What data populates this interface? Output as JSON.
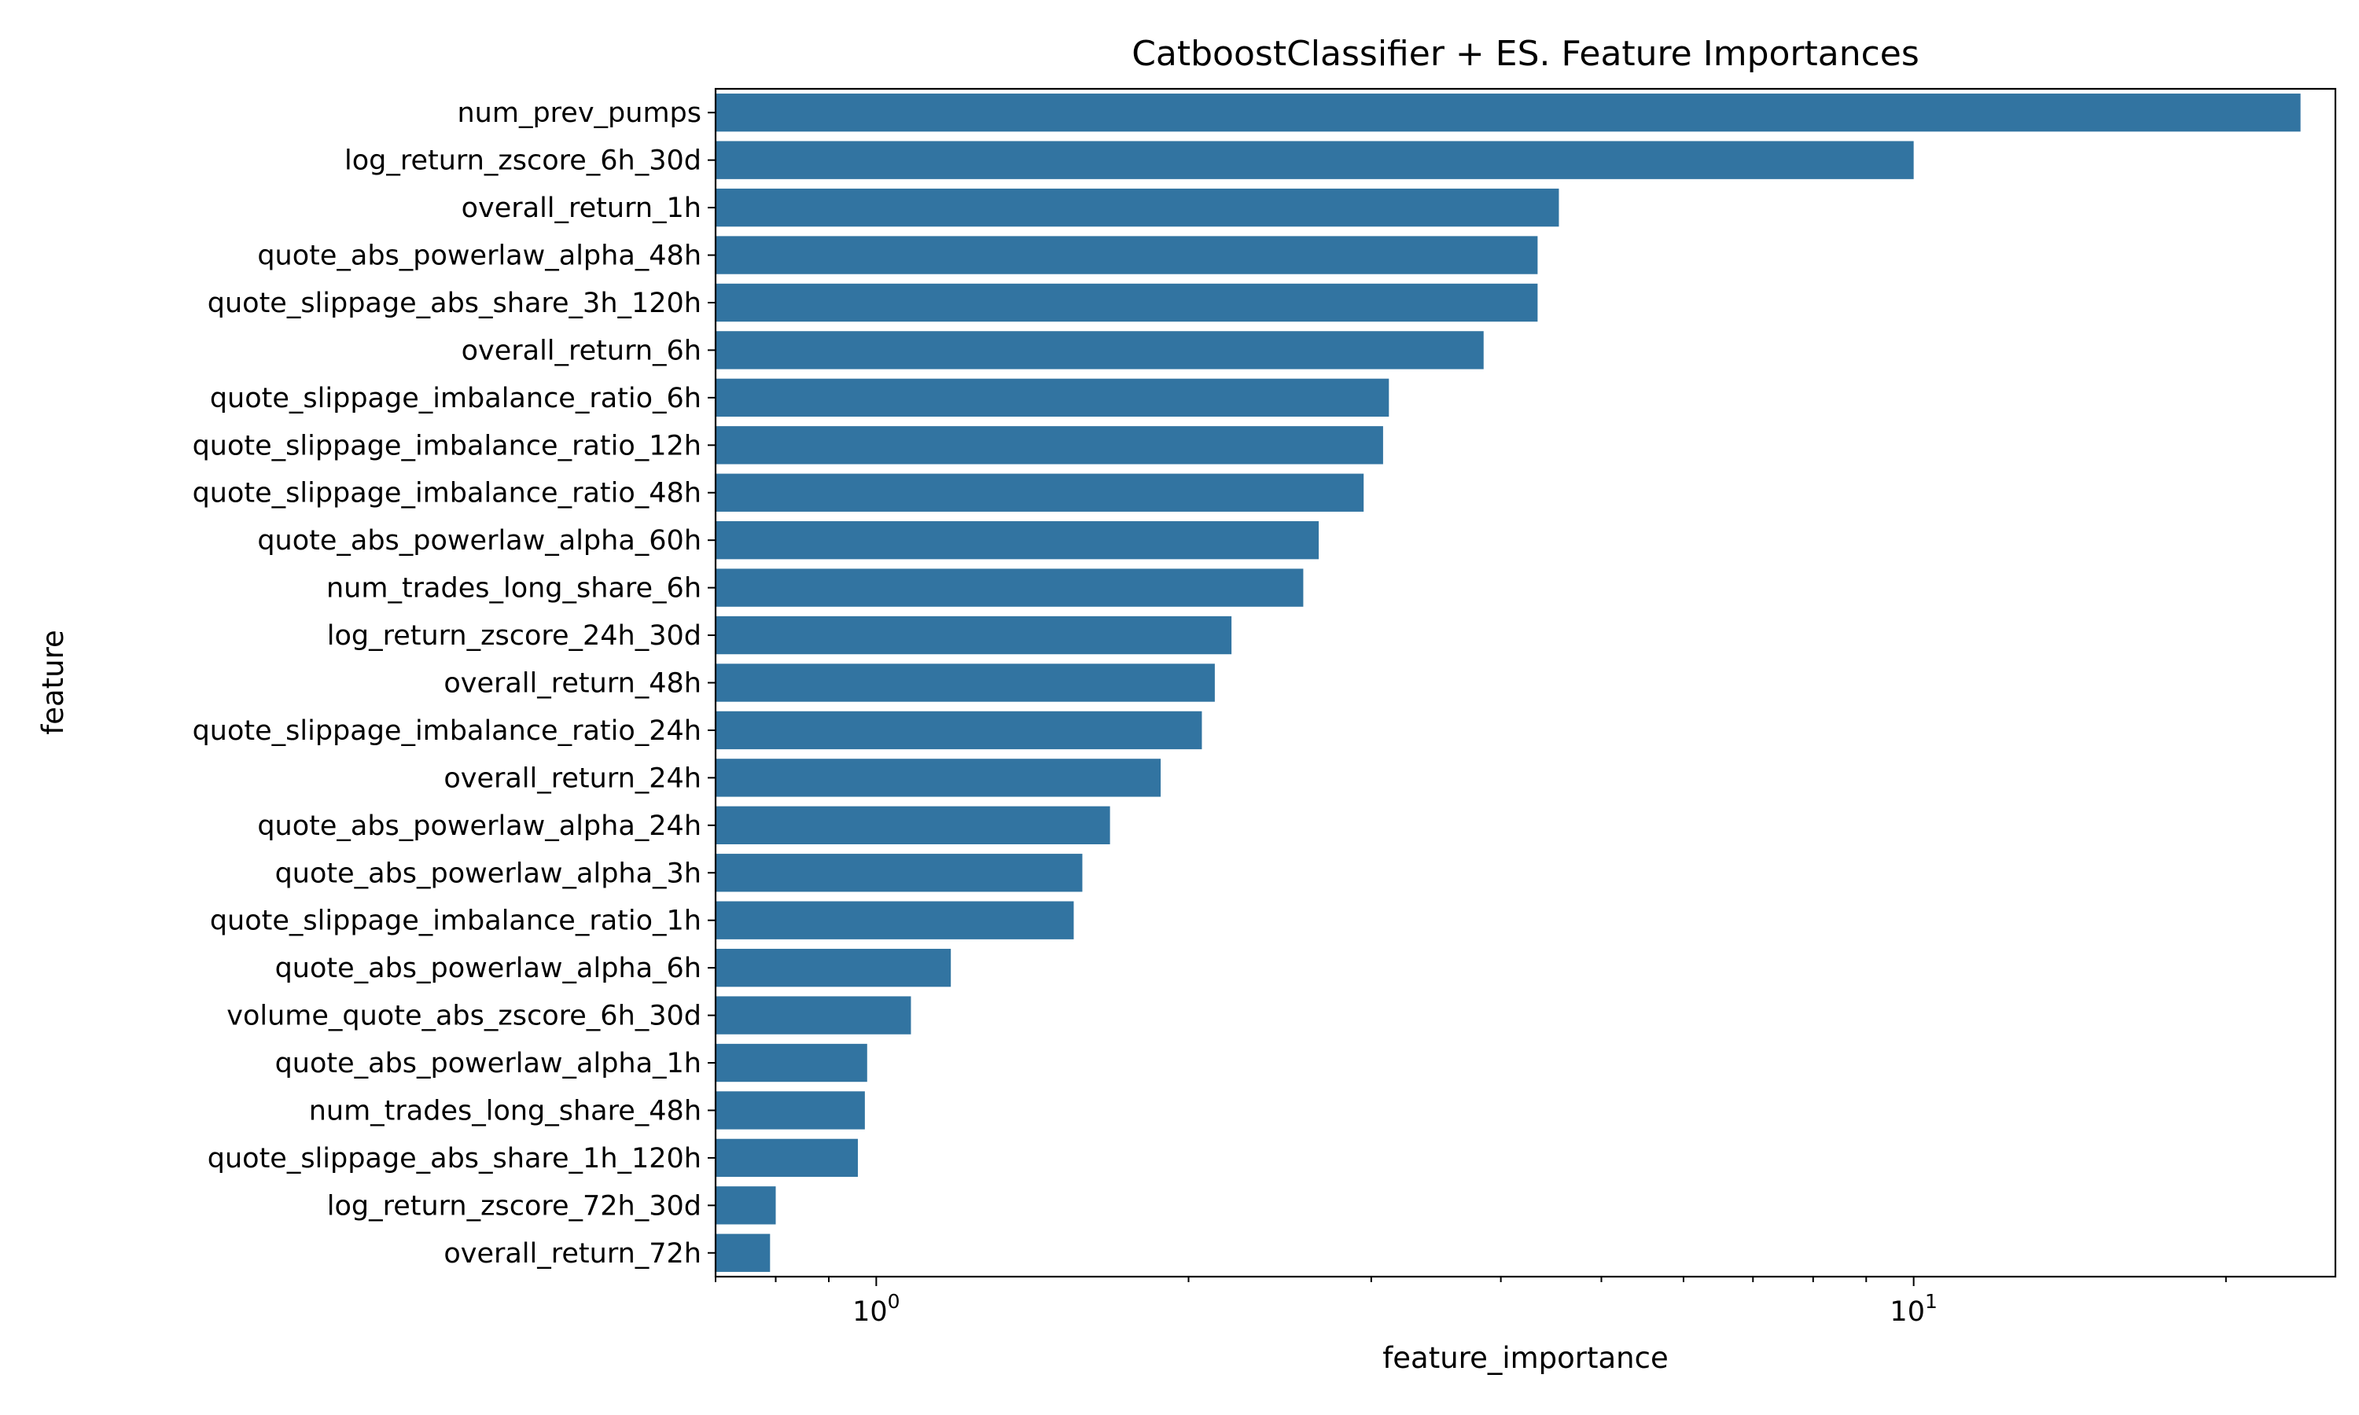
{
  "chart_data": {
    "type": "bar",
    "orientation": "horizontal",
    "title": "CatboostClassifier + ES. Feature Importances",
    "xlabel": "feature_importance",
    "ylabel": "feature",
    "xscale": "log",
    "xlim": [
      0.7,
      25.5
    ],
    "xticks": [
      {
        "value": 1,
        "base": "10",
        "exp": "0"
      },
      {
        "value": 10,
        "base": "10",
        "exp": "1"
      }
    ],
    "bar_color": "#3274a1",
    "categories": [
      "num_prev_pumps",
      "log_return_zscore_6h_30d",
      "overall_return_1h",
      "quote_abs_powerlaw_alpha_48h",
      "quote_slippage_abs_share_3h_120h",
      "overall_return_6h",
      "quote_slippage_imbalance_ratio_6h",
      "quote_slippage_imbalance_ratio_12h",
      "quote_slippage_imbalance_ratio_48h",
      "quote_abs_powerlaw_alpha_60h",
      "num_trades_long_share_6h",
      "log_return_zscore_24h_30d",
      "overall_return_48h",
      "quote_slippage_imbalance_ratio_24h",
      "overall_return_24h",
      "quote_abs_powerlaw_alpha_24h",
      "quote_abs_powerlaw_alpha_3h",
      "quote_slippage_imbalance_ratio_1h",
      "quote_abs_powerlaw_alpha_6h",
      "volume_quote_abs_zscore_6h_30d",
      "quote_abs_powerlaw_alpha_1h",
      "num_trades_long_share_48h",
      "quote_slippage_abs_share_1h_120h",
      "log_return_zscore_72h_30d",
      "overall_return_72h"
    ],
    "values": [
      23.6,
      10.0,
      4.55,
      4.34,
      4.34,
      3.85,
      3.12,
      3.08,
      2.95,
      2.67,
      2.58,
      2.2,
      2.12,
      2.06,
      1.88,
      1.68,
      1.58,
      1.55,
      1.18,
      1.08,
      0.98,
      0.975,
      0.96,
      0.8,
      0.79
    ]
  }
}
